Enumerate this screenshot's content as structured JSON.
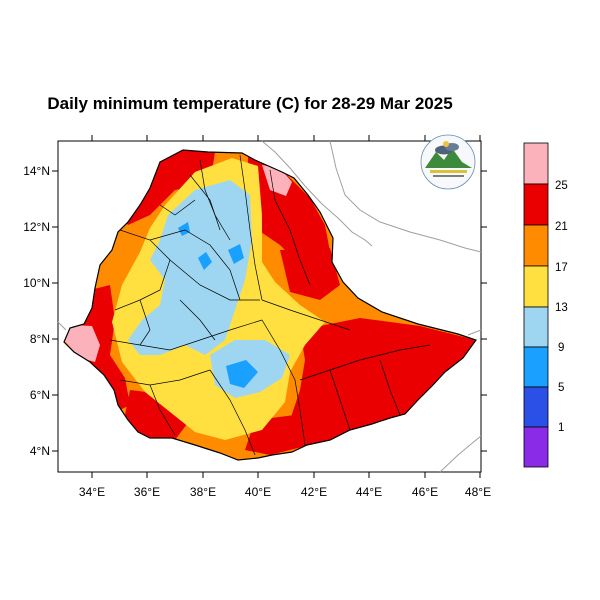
{
  "title": "Daily minimum temperature (C) for 28-29 Mar 2025",
  "axes": {
    "x_ticks": [
      "34°E",
      "36°E",
      "38°E",
      "40°E",
      "42°E",
      "44°E",
      "46°E",
      "48°E"
    ],
    "y_ticks": [
      "14°N",
      "12°N",
      "10°N",
      "8°N",
      "6°N",
      "4°N"
    ]
  },
  "legend": {
    "labels": [
      "25",
      "21",
      "17",
      "13",
      "9",
      "5",
      "1"
    ],
    "colors": [
      "#fbb2bb",
      "#ea0000",
      "#ff8c00",
      "#ffe040",
      "#9ed5f0",
      "#1aa0ff",
      "#2a50e8",
      "#8a2be8"
    ]
  },
  "logo": {
    "icon": "ethiopian-meteorology-institute-logo"
  },
  "map": {
    "country": "Ethiopia",
    "lon_range": [
      33,
      48
    ],
    "lat_range": [
      3.3,
      15
    ]
  }
}
